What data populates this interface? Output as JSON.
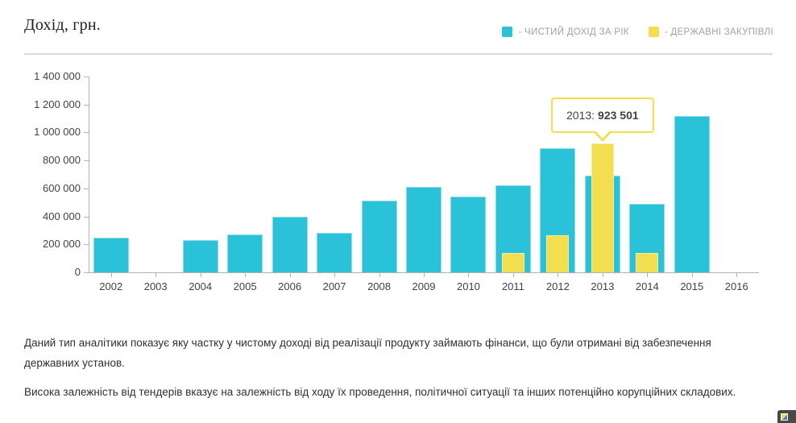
{
  "header": {
    "title": "Дохід, грн."
  },
  "legend": {
    "items": [
      {
        "label": "- ЧИСТИЙ ДОХІД ЗА РІК",
        "color": "#2ac2d8"
      },
      {
        "label": "- ДЕРЖАВНІ ЗАКУПІВЛІ",
        "color": "#f2de4f"
      }
    ]
  },
  "tooltip": {
    "year_label": "2013:",
    "value": "923 501",
    "anchor_year": "2013"
  },
  "description": {
    "p1": "Даний тип аналітики показує яку частку у чистому доході від реалізації продукту займають фінанси, що були отримані від забезпечення державних установ.",
    "p2": "Висока залежність від тендерів вказує на залежність від ходу їх проведення, політичної ситуації та інших потенційно корупційних складових."
  },
  "chart_data": {
    "type": "bar",
    "title": "Дохід, грн.",
    "categories": [
      "2002",
      "2003",
      "2004",
      "2005",
      "2006",
      "2007",
      "2008",
      "2009",
      "2010",
      "2011",
      "2012",
      "2013",
      "2014",
      "2015",
      "2016"
    ],
    "series": [
      {
        "name": "ЧИСТИЙ ДОХІД ЗА РІК",
        "color": "#2ac2d8",
        "values": [
          248000,
          null,
          232000,
          270000,
          400000,
          283000,
          510000,
          612000,
          540000,
          625000,
          890000,
          690000,
          488000,
          1118000,
          null
        ]
      },
      {
        "name": "ДЕРЖАВНІ ЗАКУПІВЛІ",
        "color": "#f2de4f",
        "values": [
          null,
          null,
          null,
          null,
          null,
          null,
          null,
          null,
          null,
          140000,
          267000,
          923501,
          140000,
          null,
          null
        ]
      }
    ],
    "xlabel": "",
    "ylabel": "Дохід, грн.",
    "ylim": [
      0,
      1400000
    ],
    "ytick_step": 200000,
    "ytick_labels": [
      "0",
      "200 000",
      "400 000",
      "600 000",
      "800 000",
      "1 000 000",
      "1 200 000",
      "1 400 000"
    ],
    "grid": false,
    "legend_position": "top-right",
    "annotation": "2013: 923 501"
  }
}
